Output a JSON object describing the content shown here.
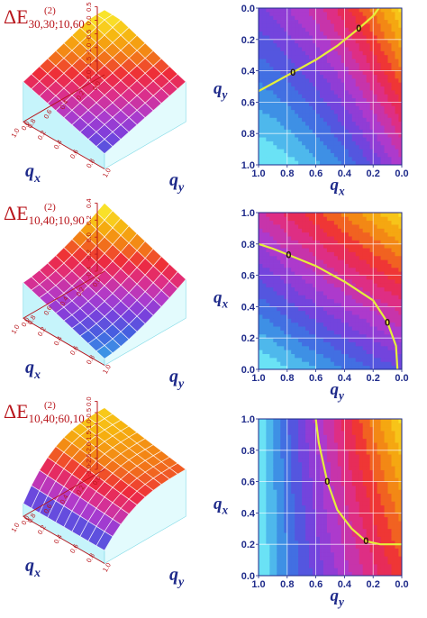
{
  "colors": {
    "text_blue": "#1e2a8a",
    "text_red": "#b8151b",
    "contour_line": "#e6ef3a",
    "palette": [
      "#6fe9f7",
      "#3c9ce6",
      "#4460e0",
      "#7b3fdc",
      "#b03acb",
      "#dd2e88",
      "#ee2a3a",
      "#f27a17",
      "#f6b20f",
      "#f9e52b"
    ]
  },
  "chart_data": [
    {
      "panel": "surface-1",
      "type": "surface",
      "title": "ΔE_{30,30;10,60}^{(2)}",
      "title_main": "ΔE",
      "title_sup": "(2)",
      "title_sub": "30,30;10,60",
      "xlabel": "q",
      "xlabel_sub": "x",
      "ylabel": "q",
      "ylabel_sub": "y",
      "x_ticks": [
        "1.0",
        "0.8",
        "0.6",
        "0.4",
        "0.2",
        "0.0"
      ],
      "y_ticks": [
        "1.0",
        "0.8",
        "0.6",
        "0.4",
        "0.2",
        "0.0"
      ],
      "z_ticks": [
        "0.5",
        "0.0",
        "-0.5",
        "-1.0",
        "-1.5",
        "-2.0"
      ],
      "zlim": [
        -2.0,
        0.7
      ]
    },
    {
      "panel": "contour-1",
      "type": "heatmap",
      "xlabel": "q",
      "xlabel_sub": "x",
      "ylabel": "q",
      "ylabel_sub": "y",
      "x_ticks": [
        "1.0",
        "0.8",
        "0.6",
        "0.4",
        "0.2",
        "0.0"
      ],
      "y_ticks": [
        "0.0",
        "0.2",
        "0.4",
        "0.6",
        "0.8",
        "1.0"
      ],
      "xlim": [
        1.0,
        0.0
      ],
      "ylim": [
        0.0,
        1.0
      ],
      "zero_contour_label": "0",
      "zero_contour": [
        [
          1.0,
          0.53
        ],
        [
          0.9,
          0.48
        ],
        [
          0.76,
          0.41
        ],
        [
          0.6,
          0.33
        ],
        [
          0.45,
          0.24
        ],
        [
          0.3,
          0.13
        ],
        [
          0.2,
          0.05
        ],
        [
          0.16,
          0.0
        ]
      ]
    },
    {
      "panel": "surface-2",
      "type": "surface",
      "title": "ΔE_{10,40;10,90}^{(2)}",
      "title_main": "ΔE",
      "title_sup": "(2)",
      "title_sub": "10,40;10,90",
      "xlabel": "q",
      "xlabel_sub": "x",
      "ylabel": "q",
      "ylabel_sub": "y",
      "x_ticks": [
        "1.0",
        "0.8",
        "0.6",
        "0.4",
        "0.2",
        "0.0"
      ],
      "y_ticks": [
        "1.0",
        "0.8",
        "0.6",
        "0.4",
        "0.2",
        "0.0"
      ],
      "z_ticks": [
        "0.4",
        "0.2",
        "0.0",
        "-0.2",
        "-0.4"
      ],
      "zlim": [
        -0.5,
        0.5
      ]
    },
    {
      "panel": "contour-2",
      "type": "heatmap",
      "xlabel": "q",
      "xlabel_sub": "y",
      "ylabel": "q",
      "ylabel_sub": "x",
      "x_ticks": [
        "1.0",
        "0.8",
        "0.6",
        "0.4",
        "0.2",
        "0.0"
      ],
      "y_ticks": [
        "0.0",
        "0.2",
        "0.4",
        "0.6",
        "0.8",
        "1.0"
      ],
      "xlim": [
        1.0,
        0.0
      ],
      "ylim": [
        0.0,
        1.0
      ],
      "zero_contour_label": "0",
      "zero_contour": [
        [
          1.0,
          0.8
        ],
        [
          0.9,
          0.77
        ],
        [
          0.79,
          0.73
        ],
        [
          0.6,
          0.66
        ],
        [
          0.4,
          0.56
        ],
        [
          0.2,
          0.44
        ],
        [
          0.1,
          0.3
        ],
        [
          0.04,
          0.15
        ],
        [
          0.03,
          0.0
        ]
      ]
    },
    {
      "panel": "surface-3",
      "type": "surface",
      "title": "ΔE_{10,40;60,10}^{(2)}",
      "title_main": "ΔE",
      "title_sup": "(2)",
      "title_sub": "10,40;60,10",
      "xlabel": "q",
      "xlabel_sub": "x",
      "ylabel": "q",
      "ylabel_sub": "y",
      "x_ticks": [
        "1.0",
        "0.8",
        "0.6",
        "0.4",
        "0.2",
        "0.0"
      ],
      "y_ticks": [
        "1.0",
        "0.8",
        "0.6",
        "0.4",
        "0.2",
        "0.0"
      ],
      "z_ticks": [
        "0.0",
        "-0.5",
        "-1.0",
        "-1.5",
        "-2.0",
        "-2.5",
        "-3.0"
      ],
      "zlim": [
        -3.2,
        0.3
      ]
    },
    {
      "panel": "contour-3",
      "type": "heatmap",
      "xlabel": "q",
      "xlabel_sub": "y",
      "ylabel": "q",
      "ylabel_sub": "x",
      "x_ticks": [
        "1.0",
        "0.8",
        "0.6",
        "0.4",
        "0.2",
        "0.0"
      ],
      "y_ticks": [
        "0.0",
        "0.2",
        "0.4",
        "0.6",
        "0.8",
        "1.0"
      ],
      "xlim": [
        1.0,
        0.0
      ],
      "ylim": [
        0.0,
        1.0
      ],
      "zero_contour_label": "0",
      "zero_contour": [
        [
          0.6,
          1.0
        ],
        [
          0.58,
          0.85
        ],
        [
          0.52,
          0.6
        ],
        [
          0.45,
          0.42
        ],
        [
          0.35,
          0.3
        ],
        [
          0.25,
          0.22
        ],
        [
          0.15,
          0.2
        ],
        [
          0.0,
          0.2
        ]
      ]
    }
  ]
}
